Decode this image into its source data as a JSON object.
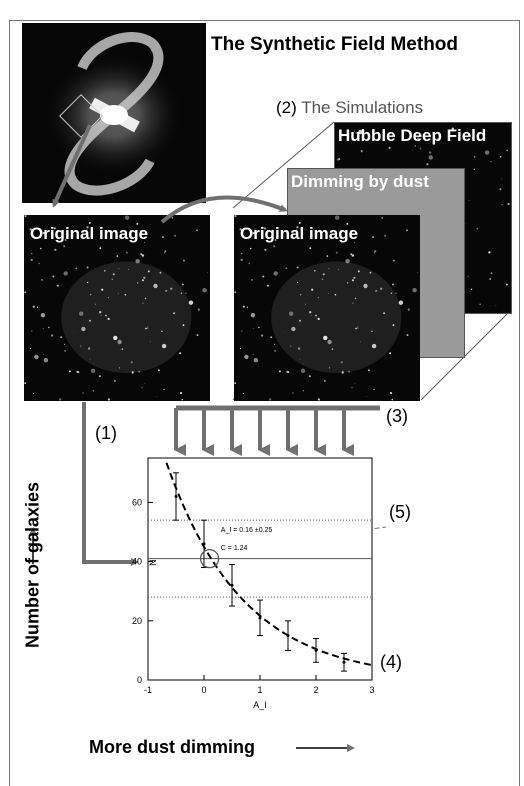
{
  "title": "The Synthetic Field Method",
  "simulations": {
    "number": "(2)",
    "label": "The Simulations"
  },
  "panels": {
    "hubble": "Hubble Deep Field",
    "dimming": "Dimming by dust",
    "original_left": "Original image",
    "original_right": "Original image"
  },
  "steps": {
    "one": "(1)",
    "three": "(3)",
    "four": "(4)",
    "five": "(5)"
  },
  "axes_captions": {
    "vertical": "Number of galaxies",
    "horizontal": "More dust dimming"
  },
  "chart_data": {
    "type": "scatter",
    "xlabel": "A_I",
    "ylabel": "N",
    "xlim": [
      -1,
      3
    ],
    "ylim": [
      0,
      75
    ],
    "x_ticks": [
      "-1",
      "0",
      "1",
      "2",
      "3"
    ],
    "y_ticks": [
      "0",
      "20",
      "40",
      "60"
    ],
    "points": [
      {
        "x": -0.5,
        "y": 62,
        "err": 8
      },
      {
        "x": 0.0,
        "y": 46,
        "err": 8
      },
      {
        "x": 0.5,
        "y": 32,
        "err": 7
      },
      {
        "x": 1.0,
        "y": 21,
        "err": 6
      },
      {
        "x": 1.5,
        "y": 15,
        "err": 5
      },
      {
        "x": 2.0,
        "y": 10,
        "err": 4
      },
      {
        "x": 2.5,
        "y": 6,
        "err": 3
      }
    ],
    "fit_curve": {
      "y0": 45,
      "k": 0.73
    },
    "reference_lines": {
      "solid": 41,
      "dotted_upper": 54,
      "dotted_lower": 28
    },
    "annotations": [
      "A_I = 0.16 ±0.25",
      "C = 1.24"
    ],
    "marked_point": {
      "x": 0.1,
      "y": 41
    }
  },
  "colors": {
    "arrow": "#707070",
    "panel_dust": "#9a9a9a",
    "image_bg": "#070707"
  }
}
